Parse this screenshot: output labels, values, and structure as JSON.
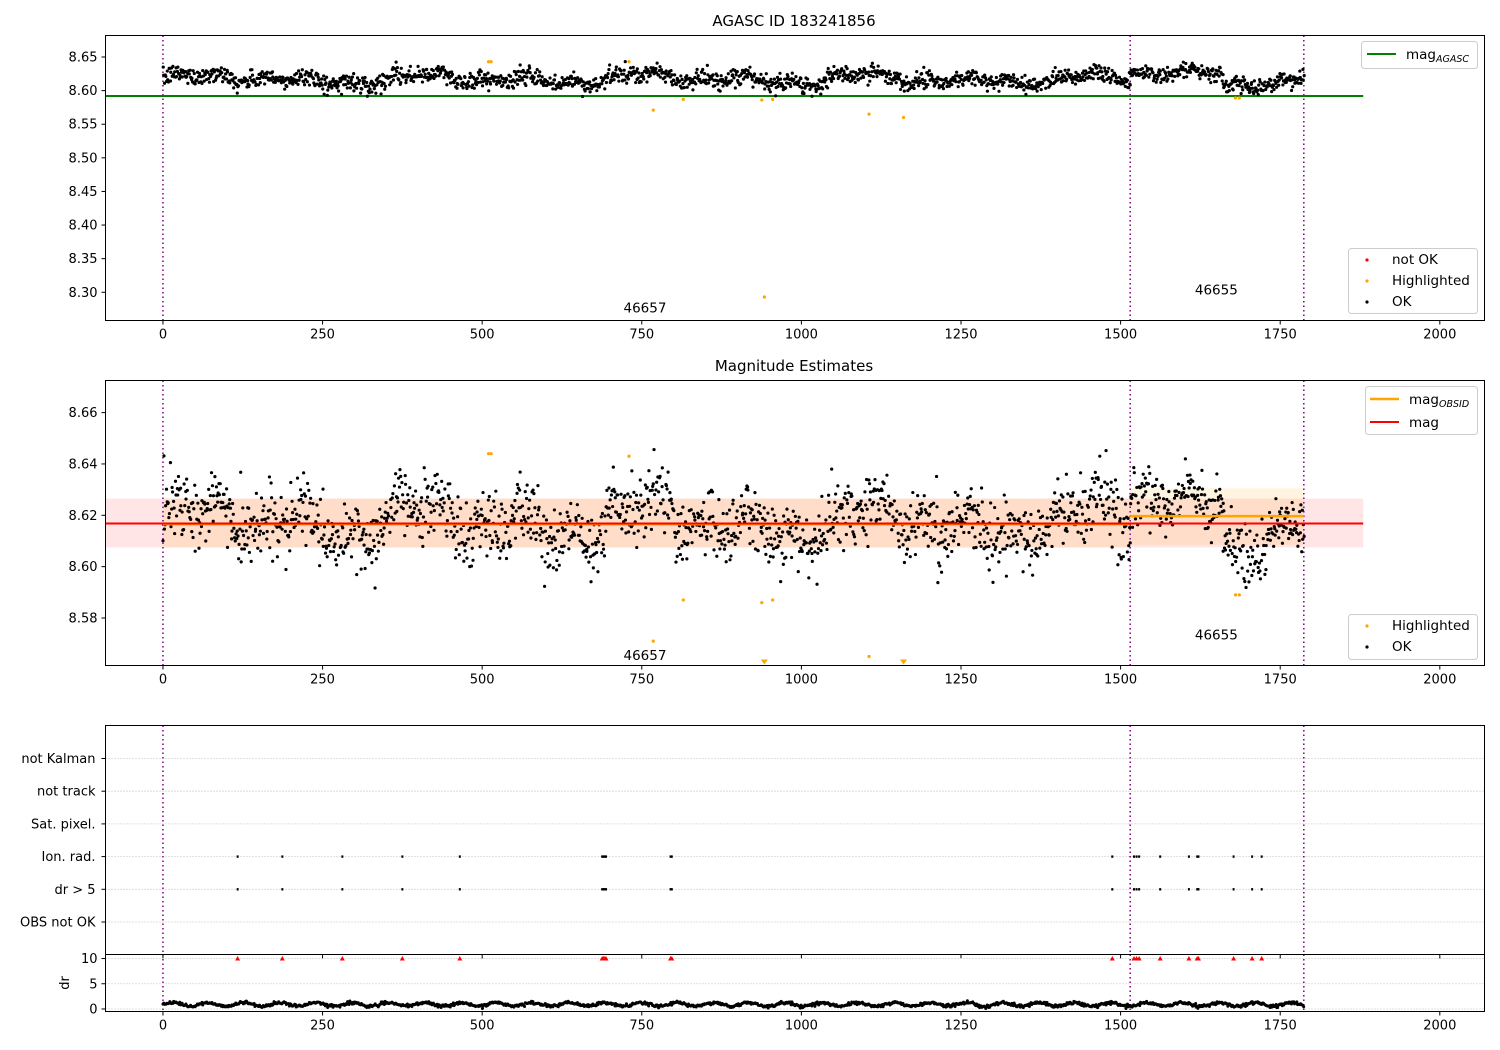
{
  "chart_data": [
    {
      "type": "scatter",
      "title": "AGASC ID 183241856",
      "xlim": [
        -90,
        2070
      ],
      "ylim": [
        8.258,
        8.682
      ],
      "xticks": [
        0,
        250,
        500,
        750,
        1000,
        1250,
        1500,
        1750,
        2000
      ],
      "yticks": [
        8.3,
        8.35,
        8.4,
        8.45,
        8.5,
        8.55,
        8.6,
        8.65
      ],
      "grid": false,
      "obs_boundaries": [
        0,
        1515,
        1787
      ],
      "obs_labels": [
        {
          "text": "46657",
          "x": 755,
          "y": 8.277
        },
        {
          "text": "46655",
          "x": 1650,
          "y": 8.304
        }
      ],
      "reference_lines": [
        {
          "name": "mag_AGASC",
          "value": 8.592,
          "x_range": [
            -90,
            1880
          ],
          "color": "#008000"
        }
      ],
      "ok_bands": [
        {
          "x_range": [
            0,
            1515
          ],
          "center": 8.617,
          "amplitude": 0.009,
          "noise": 0.0065
        },
        {
          "x_range": [
            1515,
            1660
          ],
          "center": 8.627,
          "amplitude": 0.006,
          "noise": 0.0055
        },
        {
          "x_range": [
            1660,
            1787
          ],
          "center": 8.612,
          "amplitude": 0.008,
          "noise": 0.006
        }
      ],
      "highlighted_points": [
        {
          "x": 510,
          "y": 8.643
        },
        {
          "x": 514,
          "y": 8.643
        },
        {
          "x": 730,
          "y": 8.643
        },
        {
          "x": 768,
          "y": 8.571
        },
        {
          "x": 815,
          "y": 8.587
        },
        {
          "x": 938,
          "y": 8.586
        },
        {
          "x": 942,
          "y": 8.293
        },
        {
          "x": 955,
          "y": 8.587
        },
        {
          "x": 1106,
          "y": 8.565
        },
        {
          "x": 1160,
          "y": 8.56
        },
        {
          "x": 1680,
          "y": 8.589
        },
        {
          "x": 1686,
          "y": 8.589
        }
      ],
      "legend_top": [
        {
          "label": "mag",
          "sub": "AGASC",
          "color": "#008000"
        }
      ],
      "legend_bottom": [
        {
          "label": "not OK",
          "color": "#ff0000"
        },
        {
          "label": "Highlighted",
          "color": "#ffa500"
        },
        {
          "label": "OK",
          "color": "#000000"
        }
      ]
    },
    {
      "type": "scatter",
      "title": "Magnitude Estimates",
      "xlim": [
        -90,
        2070
      ],
      "ylim": [
        8.5615,
        8.6725
      ],
      "xticks": [
        0,
        250,
        500,
        750,
        1000,
        1250,
        1500,
        1750,
        2000
      ],
      "yticks": [
        8.58,
        8.6,
        8.62,
        8.64,
        8.66
      ],
      "grid": false,
      "obs_boundaries": [
        0,
        1515,
        1787
      ],
      "obs_labels": [
        {
          "text": "46657",
          "x": 755,
          "y": 8.5655
        },
        {
          "text": "46655",
          "x": 1650,
          "y": 8.5735
        }
      ],
      "mag_line": {
        "name": "mag",
        "value": 8.6168,
        "x_range": [
          -90,
          1880
        ],
        "band": [
          8.6075,
          8.6265
        ],
        "color": "#ff0000"
      },
      "obsid_lines": [
        {
          "x_range": [
            0,
            1515
          ],
          "value": 8.6165,
          "band": [
            8.6075,
            8.6265
          ]
        },
        {
          "x_range": [
            1515,
            1787
          ],
          "value": 8.6197,
          "band": [
            8.6085,
            8.6305
          ]
        }
      ],
      "ok_bands": [
        {
          "x_range": [
            0,
            1515
          ],
          "center": 8.617,
          "amplitude": 0.009,
          "noise": 0.0065
        },
        {
          "x_range": [
            1515,
            1660
          ],
          "center": 8.627,
          "amplitude": 0.006,
          "noise": 0.0055
        },
        {
          "x_range": [
            1660,
            1787
          ],
          "center": 8.612,
          "amplitude": 0.008,
          "noise": 0.006
        }
      ],
      "highlighted_points": [
        {
          "x": 510,
          "y": 8.644
        },
        {
          "x": 514,
          "y": 8.644
        },
        {
          "x": 730,
          "y": 8.643
        },
        {
          "x": 768,
          "y": 8.571
        },
        {
          "x": 815,
          "y": 8.587
        },
        {
          "x": 938,
          "y": 8.586
        },
        {
          "x": 955,
          "y": 8.587
        },
        {
          "x": 1106,
          "y": 8.565
        },
        {
          "x": 1680,
          "y": 8.589
        },
        {
          "x": 1686,
          "y": 8.589
        }
      ],
      "highlighted_off_scale": [
        {
          "x": 942
        },
        {
          "x": 1160
        }
      ],
      "legend_top": [
        {
          "label": "mag",
          "sub": "OBSID",
          "color": "#ffa500"
        },
        {
          "label": "mag",
          "sub": "",
          "color": "#ff0000"
        }
      ],
      "legend_bottom": [
        {
          "label": "Highlighted",
          "color": "#ffa500"
        },
        {
          "label": "OK",
          "color": "#000000"
        }
      ]
    },
    {
      "type": "scatter",
      "title": "",
      "xlim": [
        -90,
        2070
      ],
      "categories": [
        "not Kalman",
        "not track",
        "Sat. pixel.",
        "Ion. rad.",
        "dr > 5",
        "OBS not OK"
      ],
      "grid": true,
      "obs_boundaries": [
        0,
        1515,
        1787
      ],
      "flag_events": {
        "Ion. rad.": [
          117,
          187,
          281,
          375,
          465,
          688,
          690,
          692,
          694,
          795,
          797,
          1487,
          1521,
          1525,
          1529,
          1562,
          1607,
          1620,
          1622,
          1677,
          1706,
          1721
        ],
        "dr > 5": [
          117,
          187,
          281,
          375,
          465,
          688,
          690,
          692,
          694,
          795,
          797,
          1487,
          1521,
          1525,
          1529,
          1562,
          1607,
          1620,
          1622,
          1677,
          1706,
          1721
        ]
      }
    },
    {
      "type": "scatter",
      "title": "",
      "ylabel": "dr",
      "xlim": [
        -90,
        2070
      ],
      "ylim": [
        -0.5,
        10.8
      ],
      "xticks": [
        0,
        250,
        500,
        750,
        1000,
        1250,
        1500,
        1750,
        2000
      ],
      "yticks": [
        0,
        5,
        10
      ],
      "grid": true,
      "obs_boundaries": [
        0,
        1515,
        1787
      ],
      "dr_baseline": {
        "center": 0.9,
        "amplitude": 0.35,
        "x_range": [
          0,
          1787
        ]
      },
      "clipped_points": {
        "value": 10,
        "color": "#ff0000",
        "x": [
          117,
          187,
          281,
          375,
          465,
          688,
          690,
          692,
          694,
          795,
          797,
          1487,
          1521,
          1525,
          1529,
          1562,
          1607,
          1620,
          1622,
          1677,
          1706,
          1721
        ]
      }
    }
  ]
}
